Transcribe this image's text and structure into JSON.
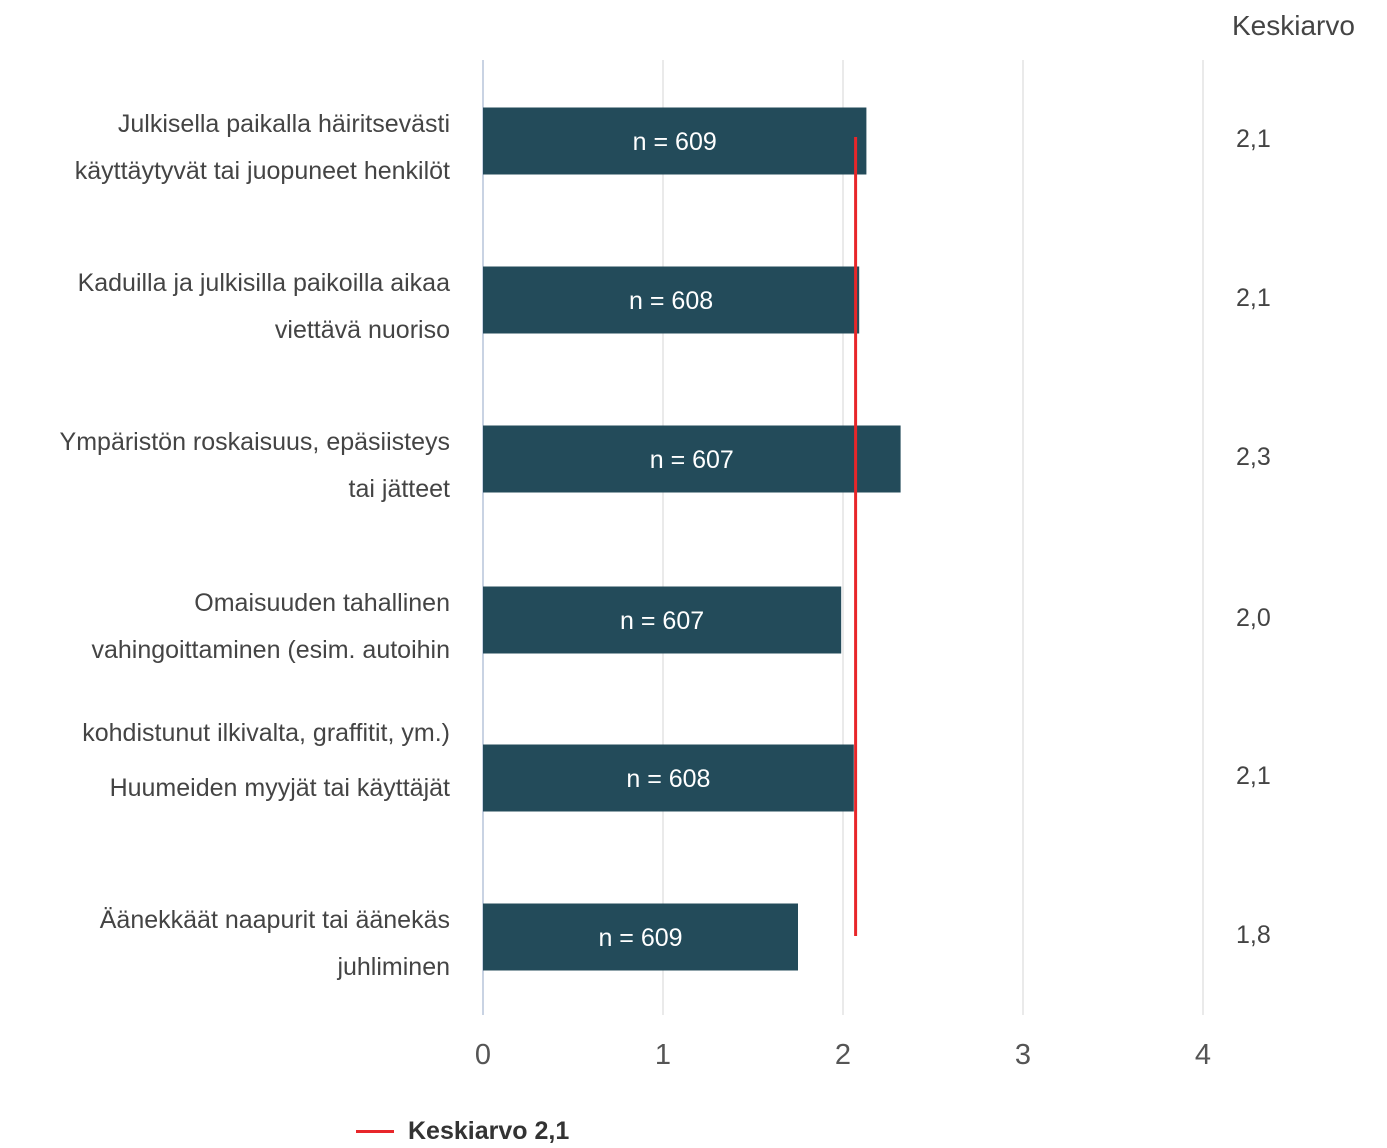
{
  "chart_data": {
    "type": "bar",
    "orientation": "horizontal",
    "categories": [
      "Julkisella paikalla häiritsevästi käyttäytyvät tai juopuneet henkilöt",
      "Kaduilla ja julkisilla paikoilla aikaa viettävä nuoriso",
      "Ympäristön roskaisuus, epäsiisteys tai jätteet",
      "Omaisuuden tahallinen vahingoittaminen (esim. autoihin kohdistunut ilkivalta, graffitit, ym.)",
      "Huumeiden myyjät tai käyttäjät",
      "Äänekkäät naapurit tai äänekäs juhliminen"
    ],
    "category_lines": [
      [
        "Julkisella paikalla häiritsevästi",
        "käyttäytyvät tai juopuneet henkilöt"
      ],
      [
        "Kaduilla ja julkisilla paikoilla aikaa",
        "viettävä nuoriso"
      ],
      [
        "Ympäristön roskaisuus, epäsiisteys",
        "tai jätteet"
      ],
      [
        "Omaisuuden tahallinen",
        "vahingoittaminen (esim. autoihin"
      ],
      [
        "kohdistunut ilkivalta, graffitit, ym.)",
        "Huumeiden myyjät tai käyttäjät"
      ],
      [
        "Äänekkäät naapurit tai äänekäs",
        "juhliminen"
      ]
    ],
    "values": [
      2.13,
      2.09,
      2.32,
      1.99,
      2.06,
      1.75
    ],
    "bar_labels": [
      "n = 609",
      "n = 608",
      "n = 607",
      "n = 607",
      "n = 608",
      "n = 609"
    ],
    "means_header": "Keskiarvo",
    "means": [
      "2,1",
      "2,1",
      "2,3",
      "2,0",
      "2,1",
      "1,8"
    ],
    "reference_line": {
      "value": 2.07,
      "label": "Keskiarvo 2,1",
      "color": "#e8262a"
    },
    "xlim": [
      0,
      4
    ],
    "xticks": [
      "0",
      "1",
      "2",
      "3",
      "4"
    ],
    "bar_color": "#234b5a",
    "grid": true,
    "legend_position": "bottom"
  }
}
